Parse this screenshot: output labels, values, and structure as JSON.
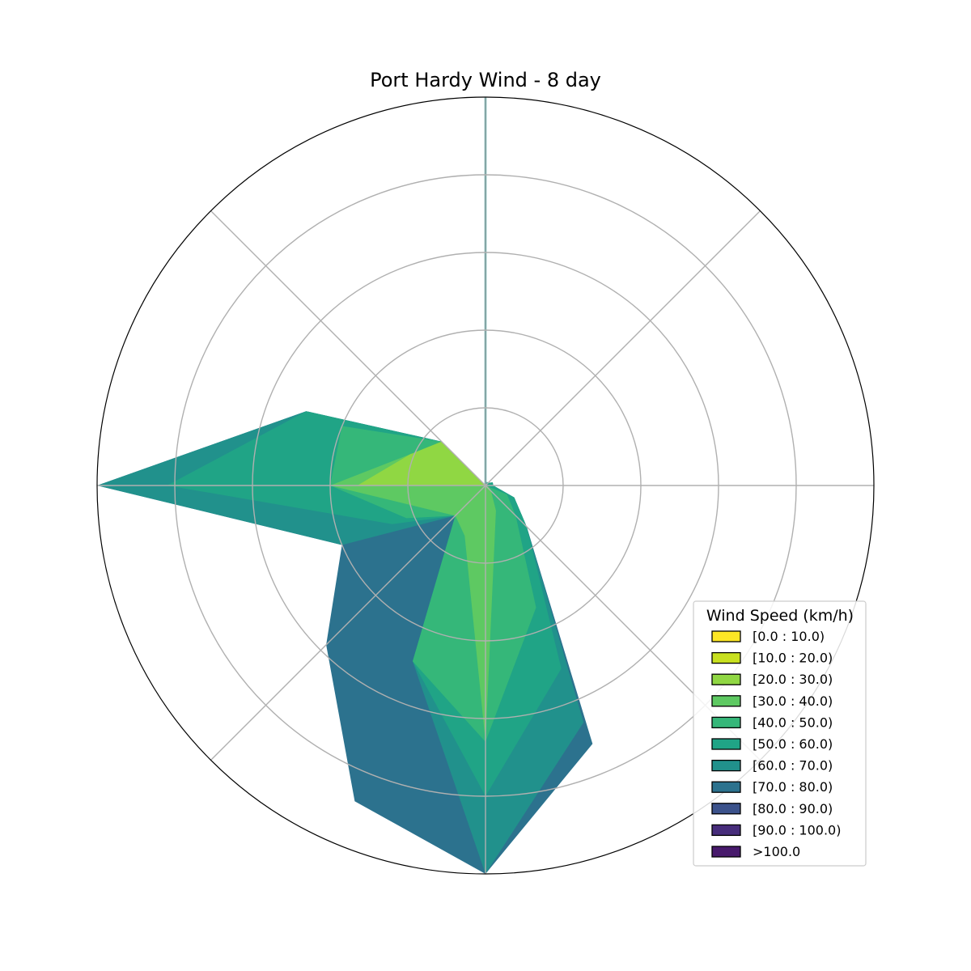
{
  "chart_data": {
    "type": "area",
    "title": "Port Hardy Wind - 8 day",
    "projection": "polar",
    "direction_clockwise": true,
    "zero_direction": "N",
    "sectors_deg": [
      0,
      22.5,
      45,
      67.5,
      90,
      112.5,
      135,
      157.5,
      180,
      202.5,
      225,
      247.5,
      270,
      292.5,
      315,
      337.5
    ],
    "rlim": [
      0,
      5
    ],
    "grid": true,
    "legend": {
      "title": "Wind Speed (km/h)",
      "placement": "lower-right"
    },
    "series": [
      {
        "name": "[0.0 : 10.0)",
        "color": "#fde725",
        "values": [
          5.0,
          0.0,
          0.0,
          0.0,
          0.0,
          0.0,
          0.0,
          0.0,
          0.0,
          0.0,
          0.0,
          0.0,
          0.0,
          0.0,
          0.0,
          0.0
        ]
      },
      {
        "name": "[10.0 : 20.0)",
        "color": "#c8e020",
        "values": [
          5.0,
          0.0,
          0.0,
          0.0,
          0.0,
          0.0,
          0.0,
          0.0,
          0.0,
          0.0,
          0.0,
          0.0,
          0.0,
          0.0,
          0.0,
          0.0
        ]
      },
      {
        "name": "[20.0 : 30.0)",
        "color": "#90d743",
        "values": [
          5.0,
          0.0,
          0.0,
          0.0,
          0.0,
          0.0,
          0.0,
          0.0,
          0.0,
          0.0,
          0.0,
          0.0,
          0.0,
          0.0,
          0.0,
          0.0
        ]
      },
      {
        "name": "[30.0 : 40.0)",
        "color": "#5ec962",
        "values": [
          5.0,
          0.0,
          0.0,
          0.0,
          0.0,
          0.0,
          0.0,
          0.0,
          0.0,
          0.0,
          0.0,
          0.0,
          0.0,
          0.0,
          0.0,
          0.0
        ]
      },
      {
        "name": "[40.0 : 50.0)",
        "color": "#35b779",
        "values": [
          5.0,
          0.0,
          0.0,
          0.0,
          0.0,
          0.0,
          0.0,
          0.0,
          0.0,
          0.0,
          0.0,
          0.0,
          0.0,
          0.0,
          0.0,
          0.0
        ]
      },
      {
        "name": "[50.0 : 60.0)",
        "color": "#20a486",
        "values": [
          5.0,
          0.0,
          0.0,
          0.0,
          0.0,
          0.0,
          0.0,
          0.0,
          0.0,
          0.0,
          0.0,
          0.0,
          0.0,
          0.0,
          0.0,
          0.0
        ]
      },
      {
        "name": "[60.0 : 70.0)",
        "color": "#21918c",
        "values": [
          5.0,
          0.0,
          0.0,
          0.0,
          0.0,
          0.0,
          0.0,
          0.0,
          0.0,
          0.0,
          0.0,
          0.0,
          0.0,
          0.0,
          0.0,
          0.0
        ]
      },
      {
        "name": "[70.0 : 80.0)",
        "color": "#2c728e",
        "values": [
          5.0,
          0.0,
          0.0,
          0.0,
          0.0,
          0.0,
          0.0,
          0.0,
          0.0,
          0.0,
          0.0,
          0.0,
          0.0,
          0.0,
          0.0,
          0.0
        ]
      },
      {
        "name": "[80.0 : 90.0)",
        "color": "#3b528b",
        "values": [
          0.0,
          0.0,
          0.0,
          0.0,
          0.0,
          0.0,
          0.0,
          0.0,
          0.0,
          0.0,
          0.0,
          0.0,
          0.0,
          0.0,
          0.0,
          0.0
        ]
      },
      {
        "name": "[90.0 : 100.0)",
        "color": "#472d7b",
        "values": [
          0.0,
          0.0,
          0.0,
          0.0,
          0.0,
          0.0,
          0.0,
          0.0,
          0.0,
          0.0,
          0.0,
          0.0,
          0.0,
          0.0,
          0.0,
          0.0
        ]
      },
      {
        "name": ">100.0",
        "color": "#481a6c",
        "values": [
          0.0,
          0.0,
          0.0,
          0.0,
          0.0,
          0.0,
          0.0,
          0.0,
          0.0,
          0.0,
          0.0,
          0.0,
          0.0,
          0.0,
          0.0,
          0.0
        ]
      }
    ],
    "filled_layers": [
      {
        "name": "[20.0 : 30.0)",
        "color": "#90d743",
        "values": [
          0,
          0.05,
          0,
          0,
          0,
          0,
          0,
          0,
          0,
          0,
          0,
          0,
          1.65,
          1.05,
          0.8,
          0
        ]
      },
      {
        "name": "[30.0 : 40.0)",
        "color": "#5ec962",
        "values": [
          0,
          0.05,
          0,
          0,
          0,
          0.05,
          0.1,
          0.35,
          3.3,
          0.7,
          0.55,
          0.8,
          2.0,
          1.05,
          0.8,
          0
        ]
      },
      {
        "name": "[40.0 : 50.0)",
        "color": "#35b779",
        "values": [
          0,
          0.05,
          0,
          0,
          0,
          0.3,
          0.55,
          1.7,
          3.3,
          2.45,
          0.55,
          1.1,
          2.0,
          2.0,
          0.8,
          0
        ]
      },
      {
        "name": "[50.0 : 60.0)",
        "color": "#20a486",
        "values": [
          0,
          0.05,
          0.05,
          0.1,
          0.1,
          0.4,
          0.75,
          2.55,
          4.0,
          2.45,
          0.55,
          1.3,
          4.1,
          2.5,
          0.8,
          0
        ]
      },
      {
        "name": "[60.0 : 70.0)",
        "color": "#21918c",
        "values": [
          0,
          0.05,
          0.05,
          0.1,
          0.1,
          0.4,
          0.75,
          3.3,
          5.0,
          2.45,
          0.55,
          2.0,
          5.0,
          2.5,
          0.8,
          0
        ]
      },
      {
        "name": "[70.0 : 80.0)",
        "color": "#2c728e",
        "values": [
          0,
          0.05,
          0.05,
          0.1,
          0.1,
          0.4,
          0.75,
          3.6,
          5.0,
          4.4,
          2.9,
          2.0,
          5.0,
          2.5,
          0.8,
          0
        ]
      }
    ]
  }
}
